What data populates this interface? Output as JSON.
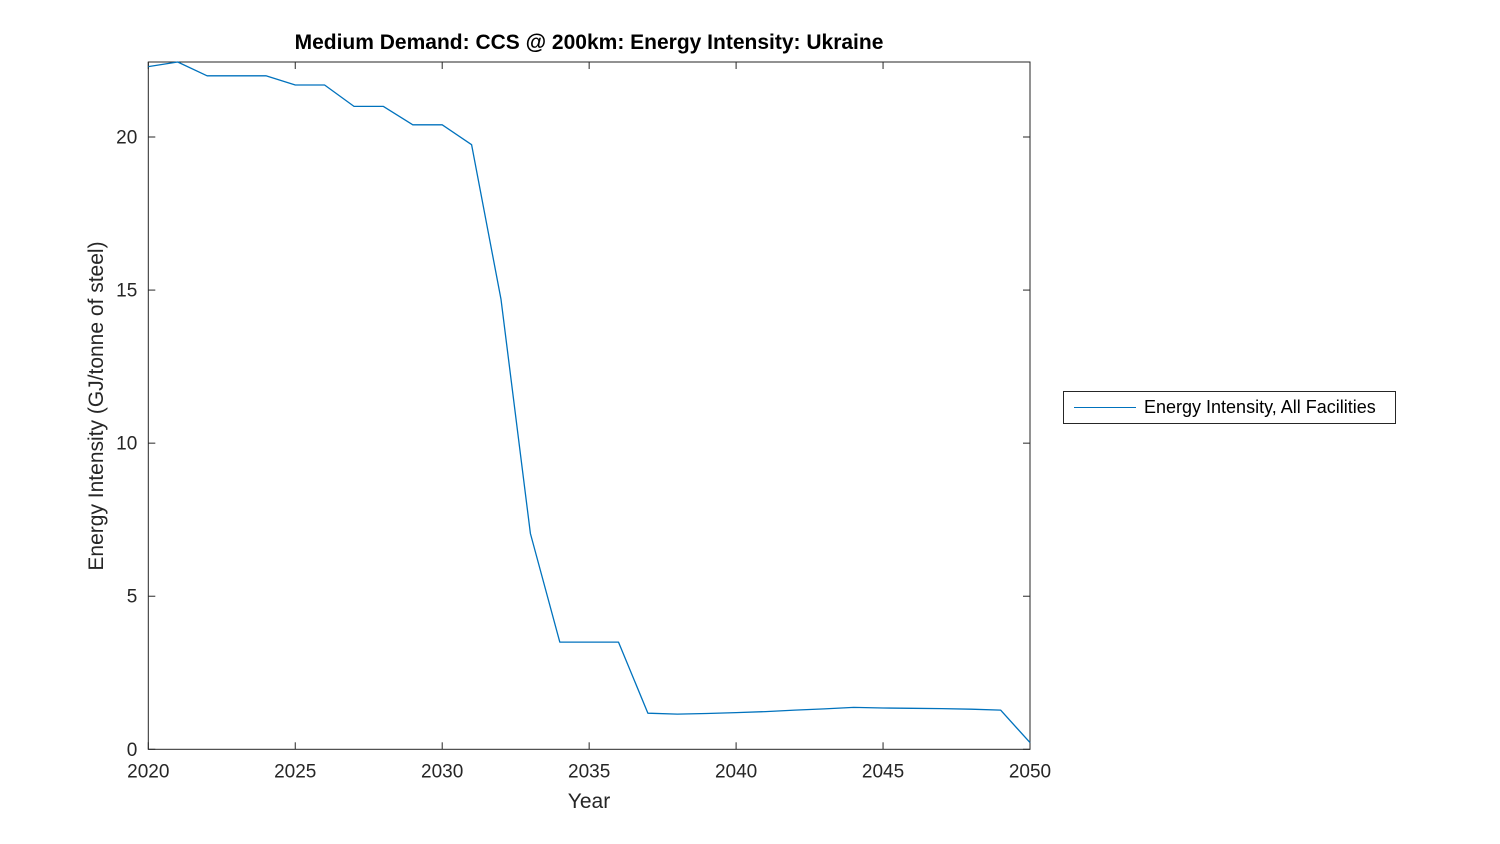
{
  "figure": {
    "background": "#ffffff"
  },
  "chart_data": {
    "type": "line",
    "title": "Medium Demand: CCS @ 200km: Energy Intensity: Ukraine",
    "xlabel": "Year",
    "ylabel": "Energy Intensity (GJ/tonne of steel)",
    "xlim": [
      2020,
      2050
    ],
    "ylim": [
      0,
      22.45
    ],
    "xticks": [
      2020,
      2025,
      2030,
      2035,
      2040,
      2045,
      2050
    ],
    "yticks": [
      0,
      5,
      10,
      15,
      20
    ],
    "grid": false,
    "box": true,
    "tick_direction": "in",
    "axis_color": "#262626",
    "line_color": "#0072BD",
    "legend": {
      "position": "outside-right",
      "entries": [
        "Energy Intensity, All Facilities"
      ]
    },
    "series": [
      {
        "name": "Energy Intensity, All Facilities",
        "x": [
          2020,
          2021,
          2022,
          2023,
          2024,
          2025,
          2026,
          2027,
          2028,
          2029,
          2030,
          2031,
          2032,
          2033,
          2034,
          2035,
          2036,
          2037,
          2038,
          2039,
          2040,
          2041,
          2042,
          2043,
          2044,
          2045,
          2046,
          2047,
          2048,
          2049,
          2050
        ],
        "y": [
          22.3,
          22.45,
          22.0,
          22.0,
          22.0,
          21.7,
          21.7,
          21.0,
          21.0,
          20.4,
          20.4,
          19.75,
          14.7,
          7.05,
          3.5,
          3.5,
          3.5,
          1.18,
          1.15,
          1.17,
          1.2,
          1.23,
          1.28,
          1.32,
          1.37,
          1.35,
          1.34,
          1.33,
          1.31,
          1.28,
          0.22
        ]
      }
    ]
  }
}
